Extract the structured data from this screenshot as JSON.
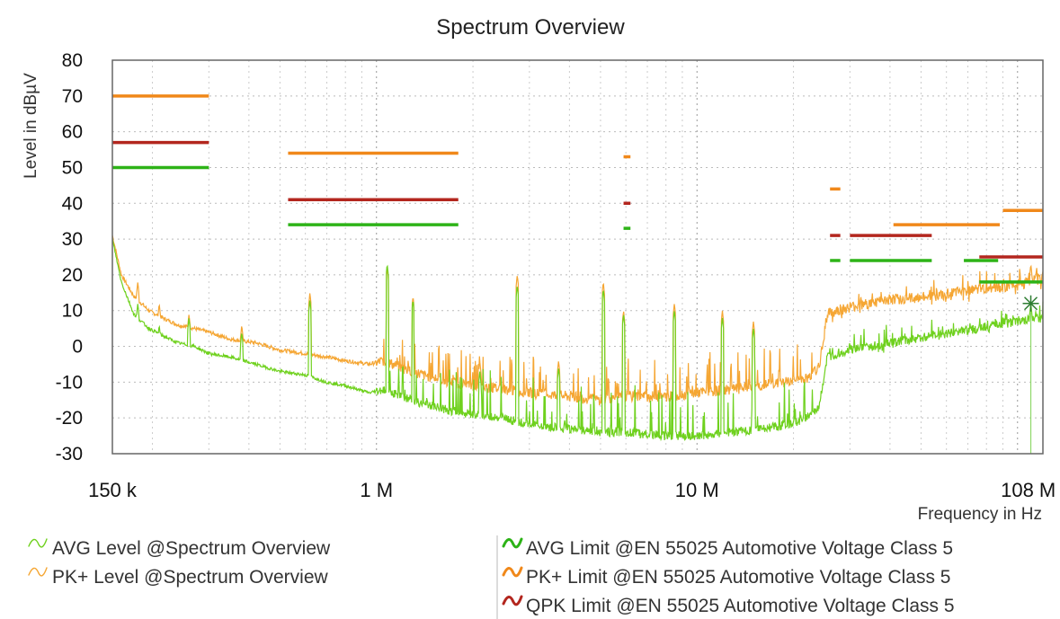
{
  "chart_data": {
    "type": "line",
    "title": "Spectrum Overview",
    "xlabel": "Frequency in Hz",
    "ylabel": "Level in dBµV",
    "x_scale": "log",
    "xlim": [
      150000,
      120000000
    ],
    "ylim": [
      -30,
      80
    ],
    "yticks": [
      80,
      70,
      60,
      50,
      40,
      30,
      20,
      10,
      0,
      -10,
      -20,
      -30
    ],
    "xticks": [
      {
        "value": 150000,
        "label": "150 k"
      },
      {
        "value": 1000000,
        "label": "1 M"
      },
      {
        "value": 10000000,
        "label": "10 M"
      },
      {
        "value": 108000000,
        "label": "108 M"
      }
    ],
    "grid": true,
    "colors": {
      "avg_level": "#6fd11e",
      "pk_level": "#f5a633",
      "avg_limit": "#2db317",
      "pk_limit": "#f0881a",
      "qpk_limit": "#b3261e"
    },
    "series": [
      {
        "name": "AVG Level @Spectrum Overview",
        "color_key": "avg_level",
        "points": [
          [
            150000,
            30
          ],
          [
            160000,
            18
          ],
          [
            175000,
            9
          ],
          [
            195000,
            5
          ],
          [
            215000,
            3
          ],
          [
            240000,
            1
          ],
          [
            270000,
            0
          ],
          [
            300000,
            -2
          ],
          [
            350000,
            -3
          ],
          [
            420000,
            -5
          ],
          [
            500000,
            -7
          ],
          [
            600000,
            -8
          ],
          [
            700000,
            -10
          ],
          [
            800000,
            -11
          ],
          [
            950000,
            -13
          ],
          [
            1050000,
            -12
          ],
          [
            1200000,
            -14
          ],
          [
            1400000,
            -16
          ],
          [
            1700000,
            -18
          ],
          [
            2000000,
            -19
          ],
          [
            2500000,
            -20
          ],
          [
            3000000,
            -22
          ],
          [
            4000000,
            -23
          ],
          [
            5000000,
            -24
          ],
          [
            6000000,
            -24
          ],
          [
            8000000,
            -25
          ],
          [
            10000000,
            -25
          ],
          [
            13000000,
            -24
          ],
          [
            16000000,
            -23
          ],
          [
            19000000,
            -22
          ],
          [
            22000000,
            -20
          ],
          [
            24000000,
            -17
          ],
          [
            25500000,
            -3
          ],
          [
            30000000,
            -1
          ],
          [
            40000000,
            1
          ],
          [
            55000000,
            3
          ],
          [
            75000000,
            5
          ],
          [
            100000000,
            7
          ],
          [
            120000000,
            8
          ]
        ],
        "peaks": [
          [
            180000,
            12
          ],
          [
            210000,
            6
          ],
          [
            260000,
            8
          ],
          [
            380000,
            4
          ],
          [
            620000,
            13
          ],
          [
            1080000,
            23
          ],
          [
            1300000,
            13
          ],
          [
            2100000,
            -7
          ],
          [
            2750000,
            17
          ],
          [
            3700000,
            -6
          ],
          [
            5100000,
            16
          ],
          [
            5900000,
            9
          ],
          [
            8500000,
            10
          ],
          [
            12000000,
            8
          ],
          [
            15000000,
            5
          ],
          [
            110000000,
            12
          ]
        ]
      },
      {
        "name": "PK+ Level @Spectrum Overview",
        "color_key": "pk_level",
        "points": [
          [
            150000,
            31
          ],
          [
            160000,
            20
          ],
          [
            175000,
            14
          ],
          [
            195000,
            10
          ],
          [
            215000,
            8
          ],
          [
            240000,
            6
          ],
          [
            270000,
            5
          ],
          [
            300000,
            4
          ],
          [
            350000,
            2
          ],
          [
            420000,
            1
          ],
          [
            500000,
            -1
          ],
          [
            600000,
            -2
          ],
          [
            700000,
            -3
          ],
          [
            800000,
            -4
          ],
          [
            950000,
            -5
          ],
          [
            1050000,
            -4
          ],
          [
            1200000,
            -6
          ],
          [
            1400000,
            -8
          ],
          [
            1700000,
            -10
          ],
          [
            2000000,
            -11
          ],
          [
            2500000,
            -12
          ],
          [
            3000000,
            -13
          ],
          [
            4000000,
            -14
          ],
          [
            5000000,
            -15
          ],
          [
            6000000,
            -14
          ],
          [
            8000000,
            -14
          ],
          [
            10000000,
            -13
          ],
          [
            13000000,
            -12
          ],
          [
            16000000,
            -11
          ],
          [
            19000000,
            -10
          ],
          [
            22000000,
            -9
          ],
          [
            24000000,
            -6
          ],
          [
            25500000,
            9
          ],
          [
            30000000,
            11
          ],
          [
            40000000,
            13
          ],
          [
            55000000,
            14
          ],
          [
            75000000,
            16
          ],
          [
            100000000,
            17
          ],
          [
            120000000,
            19
          ]
        ],
        "peaks": [
          [
            180000,
            18
          ],
          [
            210000,
            12
          ],
          [
            260000,
            9
          ],
          [
            380000,
            6
          ],
          [
            620000,
            15
          ],
          [
            1080000,
            22
          ],
          [
            1300000,
            14
          ],
          [
            2100000,
            -4
          ],
          [
            2750000,
            20
          ],
          [
            3700000,
            -4
          ],
          [
            5100000,
            18
          ],
          [
            5900000,
            10
          ],
          [
            8500000,
            12
          ],
          [
            12000000,
            10
          ],
          [
            15000000,
            7
          ],
          [
            110000000,
            23
          ]
        ]
      }
    ],
    "limits": [
      {
        "name": "AVG Limit @EN 55025 Automotive Voltage Class 5",
        "color_key": "avg_limit",
        "segments": [
          [
            150000,
            300000,
            50
          ],
          [
            530000,
            1800000,
            34
          ],
          [
            5900000,
            6200000,
            33
          ],
          [
            26000000,
            28000000,
            24
          ],
          [
            30000000,
            54000000,
            24
          ],
          [
            68000000,
            87000000,
            24
          ],
          [
            76000000,
            120000000,
            18
          ]
        ]
      },
      {
        "name": "PK+ Limit @EN 55025 Automotive Voltage Class 5",
        "color_key": "pk_limit",
        "segments": [
          [
            150000,
            300000,
            70
          ],
          [
            530000,
            1800000,
            54
          ],
          [
            5900000,
            6200000,
            53
          ],
          [
            26000000,
            28000000,
            44
          ],
          [
            41000000,
            88000000,
            34
          ],
          [
            90000000,
            120000000,
            38
          ]
        ]
      },
      {
        "name": "QPK Limit @EN 55025 Automotive Voltage Class 5",
        "color_key": "qpk_limit",
        "segments": [
          [
            150000,
            300000,
            57
          ],
          [
            530000,
            1800000,
            41
          ],
          [
            5900000,
            6200000,
            40
          ],
          [
            26000000,
            28000000,
            31
          ],
          [
            30000000,
            54000000,
            31
          ],
          [
            76000000,
            120000000,
            25
          ]
        ]
      }
    ],
    "marker": {
      "x": 110000000,
      "y": 12
    }
  },
  "legend": {
    "left": [
      {
        "label": "AVG Level @Spectrum Overview",
        "color_key": "avg_level"
      },
      {
        "label": "PK+ Level @Spectrum Overview",
        "color_key": "pk_level"
      }
    ],
    "right": [
      {
        "label": "AVG Limit @EN 55025 Automotive Voltage Class 5",
        "color_key": "avg_limit"
      },
      {
        "label": "PK+ Limit @EN 55025 Automotive Voltage Class 5",
        "color_key": "pk_limit"
      },
      {
        "label": "QPK Limit @EN 55025 Automotive Voltage Class 5",
        "color_key": "qpk_limit"
      }
    ]
  }
}
